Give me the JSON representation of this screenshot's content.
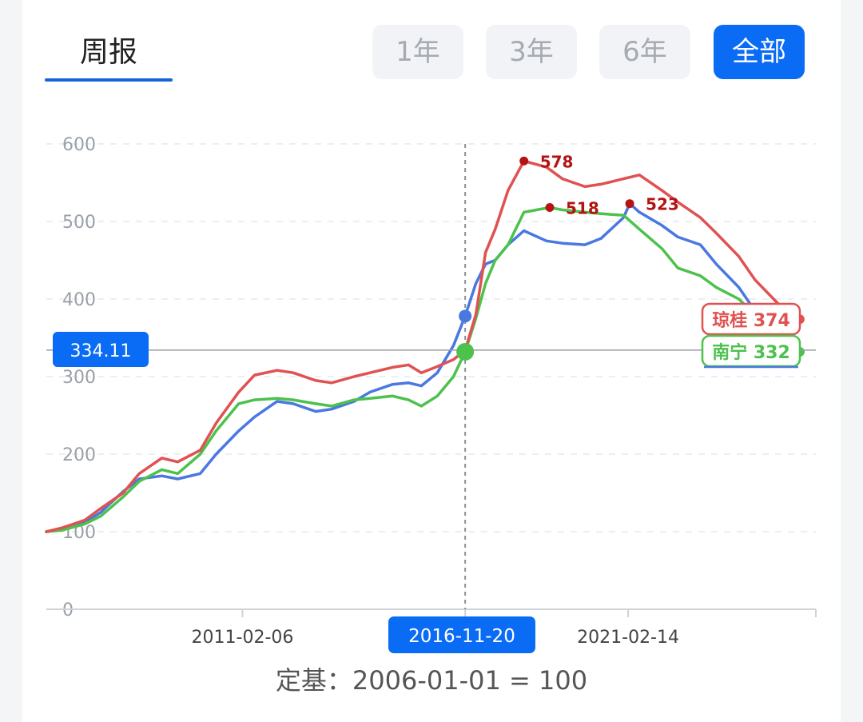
{
  "header": {
    "tab_label": "周报",
    "ranges": [
      "1年",
      "3年",
      "6年",
      "全部"
    ],
    "active_range": "全部"
  },
  "caption": {
    "prefix": "定基：",
    "base": "2006-01-01 = 100"
  },
  "colors": {
    "qionggui": "#e05252",
    "nanning": "#4cc24c",
    "third": "#4a78e0",
    "accent": "#0a6cf5"
  },
  "chart_data": {
    "type": "line",
    "ylim": [
      0,
      600
    ],
    "yticks": [
      0,
      100,
      200,
      300,
      400,
      500,
      600
    ],
    "xlim": [
      "2006-01-01",
      "2026-01-01"
    ],
    "xticks": [
      "2011-02-06",
      "2016-11-20",
      "2021-02-14"
    ],
    "grid": true,
    "crosshair": {
      "x": "2016-11-20",
      "y_label": "334.11",
      "x_label": "2016-11-20"
    },
    "series": [
      {
        "name": "琼桂",
        "color": "#e05252",
        "end_label": "琼桂 374",
        "peak": {
          "x": "2018-06-01",
          "y": 578,
          "label": "578"
        },
        "points": [
          [
            "2006-01-01",
            100
          ],
          [
            "2006-06-01",
            105
          ],
          [
            "2007-01-01",
            115
          ],
          [
            "2007-06-01",
            130
          ],
          [
            "2008-01-01",
            150
          ],
          [
            "2008-06-01",
            175
          ],
          [
            "2009-01-01",
            195
          ],
          [
            "2009-06-01",
            190
          ],
          [
            "2010-01-01",
            205
          ],
          [
            "2010-06-01",
            240
          ],
          [
            "2011-01-01",
            280
          ],
          [
            "2011-06-01",
            302
          ],
          [
            "2012-01-01",
            308
          ],
          [
            "2012-06-01",
            305
          ],
          [
            "2013-01-01",
            295
          ],
          [
            "2013-06-01",
            292
          ],
          [
            "2014-01-01",
            300
          ],
          [
            "2014-06-01",
            305
          ],
          [
            "2015-01-01",
            312
          ],
          [
            "2015-06-01",
            315
          ],
          [
            "2015-10-01",
            305
          ],
          [
            "2016-03-01",
            313
          ],
          [
            "2016-08-01",
            322
          ],
          [
            "2016-11-20",
            334
          ],
          [
            "2017-03-01",
            380
          ],
          [
            "2017-06-01",
            460
          ],
          [
            "2017-09-01",
            490
          ],
          [
            "2018-01-01",
            540
          ],
          [
            "2018-06-01",
            578
          ],
          [
            "2019-01-01",
            570
          ],
          [
            "2019-06-01",
            555
          ],
          [
            "2020-01-01",
            545
          ],
          [
            "2020-06-01",
            548
          ],
          [
            "2021-01-01",
            555
          ],
          [
            "2021-06-01",
            560
          ],
          [
            "2022-01-01",
            540
          ],
          [
            "2022-06-01",
            525
          ],
          [
            "2023-01-01",
            505
          ],
          [
            "2023-06-01",
            485
          ],
          [
            "2024-01-01",
            455
          ],
          [
            "2024-06-01",
            425
          ],
          [
            "2025-01-01",
            395
          ],
          [
            "2025-08-01",
            374
          ]
        ]
      },
      {
        "name": "南宁",
        "color": "#4cc24c",
        "end_label": "南宁 332",
        "peak": {
          "x": "2019-02-01",
          "y": 518,
          "label": "518"
        },
        "points": [
          [
            "2006-01-01",
            100
          ],
          [
            "2006-06-01",
            102
          ],
          [
            "2007-01-01",
            110
          ],
          [
            "2007-06-01",
            120
          ],
          [
            "2008-01-01",
            145
          ],
          [
            "2008-06-01",
            165
          ],
          [
            "2009-01-01",
            180
          ],
          [
            "2009-06-01",
            175
          ],
          [
            "2010-01-01",
            200
          ],
          [
            "2010-06-01",
            230
          ],
          [
            "2011-01-01",
            265
          ],
          [
            "2011-06-01",
            270
          ],
          [
            "2012-01-01",
            272
          ],
          [
            "2012-06-01",
            270
          ],
          [
            "2013-01-01",
            265
          ],
          [
            "2013-06-01",
            262
          ],
          [
            "2014-01-01",
            270
          ],
          [
            "2014-06-01",
            272
          ],
          [
            "2015-01-01",
            275
          ],
          [
            "2015-06-01",
            270
          ],
          [
            "2015-10-01",
            262
          ],
          [
            "2016-03-01",
            275
          ],
          [
            "2016-08-01",
            300
          ],
          [
            "2016-11-20",
            332
          ],
          [
            "2017-03-01",
            375
          ],
          [
            "2017-06-01",
            420
          ],
          [
            "2017-09-01",
            450
          ],
          [
            "2018-01-01",
            470
          ],
          [
            "2018-06-01",
            512
          ],
          [
            "2019-02-01",
            518
          ],
          [
            "2019-06-01",
            515
          ],
          [
            "2020-01-01",
            512
          ],
          [
            "2020-06-01",
            510
          ],
          [
            "2021-01-01",
            508
          ],
          [
            "2021-06-01",
            490
          ],
          [
            "2022-01-01",
            465
          ],
          [
            "2022-06-01",
            440
          ],
          [
            "2023-01-01",
            430
          ],
          [
            "2023-06-01",
            415
          ],
          [
            "2024-01-01",
            400
          ],
          [
            "2024-06-01",
            380
          ],
          [
            "2025-01-01",
            355
          ],
          [
            "2025-08-01",
            332
          ]
        ]
      },
      {
        "name": "",
        "color": "#4a78e0",
        "end_label": "",
        "peak": {
          "x": "2021-03-01",
          "y": 523,
          "label": "523"
        },
        "points": [
          [
            "2006-01-01",
            100
          ],
          [
            "2006-06-01",
            104
          ],
          [
            "2007-01-01",
            112
          ],
          [
            "2007-06-01",
            125
          ],
          [
            "2008-01-01",
            152
          ],
          [
            "2008-06-01",
            168
          ],
          [
            "2009-01-01",
            172
          ],
          [
            "2009-06-01",
            168
          ],
          [
            "2010-01-01",
            175
          ],
          [
            "2010-06-01",
            200
          ],
          [
            "2011-01-01",
            230
          ],
          [
            "2011-06-01",
            248
          ],
          [
            "2012-01-01",
            268
          ],
          [
            "2012-06-01",
            265
          ],
          [
            "2013-01-01",
            255
          ],
          [
            "2013-06-01",
            258
          ],
          [
            "2014-01-01",
            268
          ],
          [
            "2014-06-01",
            280
          ],
          [
            "2015-01-01",
            290
          ],
          [
            "2015-06-01",
            292
          ],
          [
            "2015-10-01",
            288
          ],
          [
            "2016-03-01",
            305
          ],
          [
            "2016-08-01",
            340
          ],
          [
            "2016-11-20",
            378
          ],
          [
            "2017-03-01",
            420
          ],
          [
            "2017-06-01",
            445
          ],
          [
            "2017-09-01",
            450
          ],
          [
            "2018-01-01",
            470
          ],
          [
            "2018-06-01",
            488
          ],
          [
            "2019-01-01",
            475
          ],
          [
            "2019-06-01",
            472
          ],
          [
            "2020-01-01",
            470
          ],
          [
            "2020-06-01",
            478
          ],
          [
            "2021-01-01",
            505
          ],
          [
            "2021-03-01",
            523
          ],
          [
            "2021-06-01",
            512
          ],
          [
            "2022-01-01",
            495
          ],
          [
            "2022-06-01",
            480
          ],
          [
            "2023-01-01",
            470
          ],
          [
            "2023-06-01",
            445
          ],
          [
            "2024-01-01",
            415
          ],
          [
            "2024-06-01",
            385
          ],
          [
            "2025-01-01",
            358
          ],
          [
            "2025-08-01",
            332
          ]
        ]
      }
    ]
  }
}
